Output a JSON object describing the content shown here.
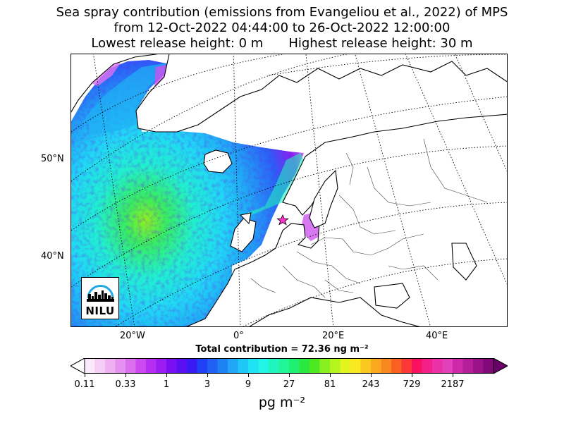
{
  "title": {
    "line1": "Sea spray contribution (emissions from Evangeliou et al., 2022) of MPS",
    "line2": "from 12-Oct-2022 04:44:00 to 26-Oct-2022 12:00:00",
    "line3_left": "Lowest release height: 0 m",
    "line3_right": "Highest release height: 30 m"
  },
  "map": {
    "lat_labels": [
      "50°N",
      "40°N"
    ],
    "lon_labels": [
      "20°W",
      "0°",
      "20°E",
      "40°E"
    ],
    "release_site_marker": "star-icon",
    "logo_text": "NILU"
  },
  "total_contribution": "Total contribution = 72.36 ng m⁻²",
  "colorbar": {
    "tick_labels": [
      "0.11",
      "0.33",
      "1",
      "3",
      "9",
      "27",
      "81",
      "243",
      "729",
      "2187"
    ],
    "units": "pg m⁻²",
    "colors": [
      "#fbe8fb",
      "#f5cdf5",
      "#efb0f2",
      "#e690f0",
      "#dc6ef0",
      "#cc48f0",
      "#b52ef0",
      "#9a1cf2",
      "#7a10f2",
      "#5a0ef2",
      "#3a1af2",
      "#2040f5",
      "#2060f5",
      "#1e82f5",
      "#20a6f5",
      "#20c6f5",
      "#20e2f5",
      "#20f5e6",
      "#20f5c0",
      "#20f598",
      "#20f070",
      "#2ae840",
      "#4ee820",
      "#86f020",
      "#b6f420",
      "#e2f420",
      "#fae820",
      "#fac820",
      "#faa820",
      "#fa8820",
      "#fa6020",
      "#fa3838",
      "#fa1060",
      "#f4208a",
      "#ec30a8",
      "#e040b8",
      "#cc2aa8",
      "#b41e98",
      "#9a1288",
      "#800878"
    ],
    "under_color": "#ffffff",
    "over_color": "#6a0068"
  }
}
